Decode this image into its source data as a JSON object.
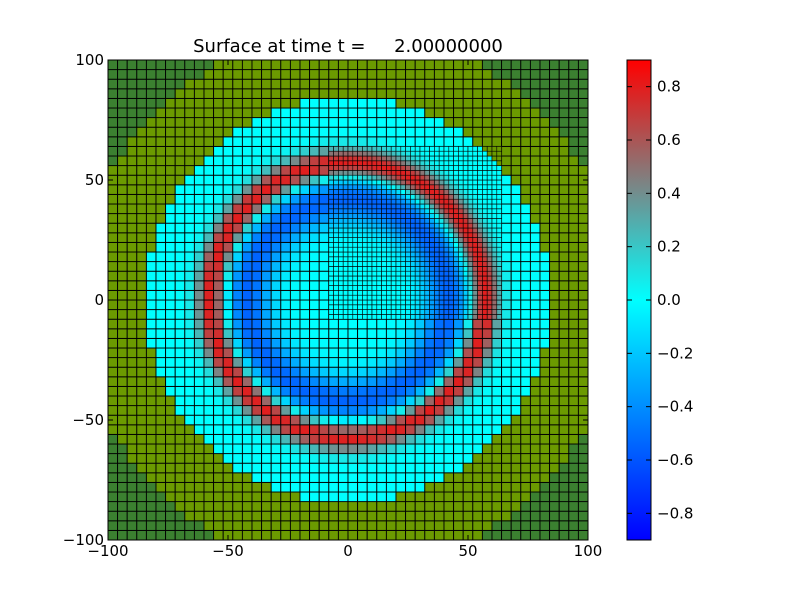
{
  "chart_data": {
    "type": "heatmap",
    "title": "Surface at time t =     2.00000000",
    "xlabel": "",
    "ylabel": "",
    "xlim": [
      -100,
      100
    ],
    "ylim": [
      -100,
      100
    ],
    "x_ticks": [
      -100,
      -50,
      0,
      50,
      100
    ],
    "y_ticks": [
      -100,
      -50,
      0,
      50,
      100
    ],
    "x_tick_labels": [
      "−100",
      "−50",
      "0",
      "50",
      "100"
    ],
    "y_tick_labels": [
      "−100",
      "−50",
      "0",
      "50",
      "100"
    ],
    "coarse_cell_size": 4,
    "fine_cell_size": 2,
    "fine_patch": {
      "x": [
        -8,
        64
      ],
      "y": [
        -8,
        64
      ]
    },
    "features": {
      "land_outer_radius": 100,
      "water_disk_radius": 84,
      "wave_ring_radius": 57,
      "wave_ring_width": 6,
      "trough_radius": 42,
      "trough_width": 10,
      "wave_crest_value": 0.85,
      "trough_value": -0.55,
      "background_water_value": 0.0
    },
    "colors": {
      "land": "#6b9a00",
      "land_corner": "#3b8030",
      "water": "#00ffff",
      "cell_edge": "#000000"
    },
    "colorbar": {
      "vmin": -0.9,
      "vmax": 0.9,
      "ticks": [
        0.8,
        0.6,
        0.4,
        0.2,
        0.0,
        -0.2,
        -0.4,
        -0.6,
        -0.8
      ],
      "tick_labels": [
        "0.8",
        "0.6",
        "0.4",
        "0.2",
        "0.0",
        "−0.2",
        "−0.4",
        "−0.6",
        "−0.8"
      ],
      "colormap": [
        "#0000ff",
        "#00ffff",
        "#808080",
        "#ff0000"
      ]
    }
  }
}
